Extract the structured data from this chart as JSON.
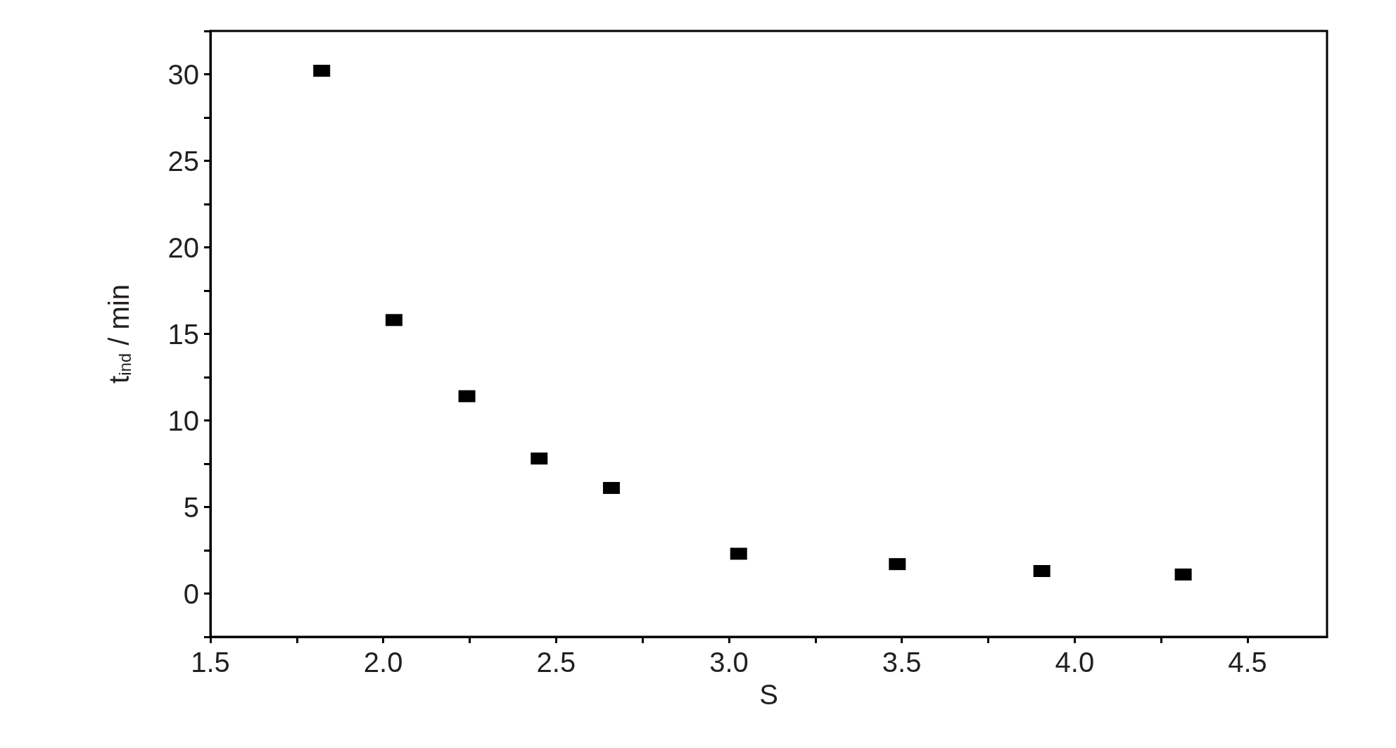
{
  "chart_data": {
    "type": "scatter",
    "xlabel": "S",
    "ylabel": "t$_{ind}$ / min",
    "x": [
      1.822,
      2.031,
      2.242,
      2.451,
      2.66,
      3.028,
      3.487,
      3.905,
      4.314
    ],
    "series": [
      {
        "color": "#000000",
        "values": [
          30.2,
          15.8,
          11.4,
          7.8,
          6.1,
          2.3,
          1.7,
          1.3,
          1.1
        ]
      }
    ],
    "marker": "square",
    "xlim": [
      1.5,
      4.73
    ],
    "ylim": [
      -2.5,
      32.5
    ],
    "xticks": [
      {
        "value": 1.5,
        "label": "1.5"
      },
      {
        "value": 1.75,
        "label": null
      },
      {
        "value": 2,
        "label": "2.0"
      },
      {
        "value": 2.25,
        "label": null
      },
      {
        "value": 2.5,
        "label": "2.5"
      },
      {
        "value": 2.75,
        "label": null
      },
      {
        "value": 3,
        "label": "3.0"
      },
      {
        "value": 3.25,
        "label": null
      },
      {
        "value": 3.5,
        "label": "3.5"
      },
      {
        "value": 3.75,
        "label": null
      },
      {
        "value": 4,
        "label": "4.0"
      },
      {
        "value": 4.25,
        "label": null
      },
      {
        "value": 4.5,
        "label": "4.5"
      }
    ],
    "yticks": [
      {
        "value": -2.5,
        "label": null
      },
      0,
      {
        "value": 2.5,
        "label": null
      },
      5,
      {
        "value": 7.5,
        "label": null
      },
      10,
      {
        "value": 12.5,
        "label": null
      },
      15,
      {
        "value": 17.5,
        "label": null
      },
      20,
      {
        "value": 22.5,
        "label": null
      },
      25,
      {
        "value": 27.5,
        "label": null
      },
      30,
      {
        "value": 32.5,
        "label": null
      }
    ]
  }
}
